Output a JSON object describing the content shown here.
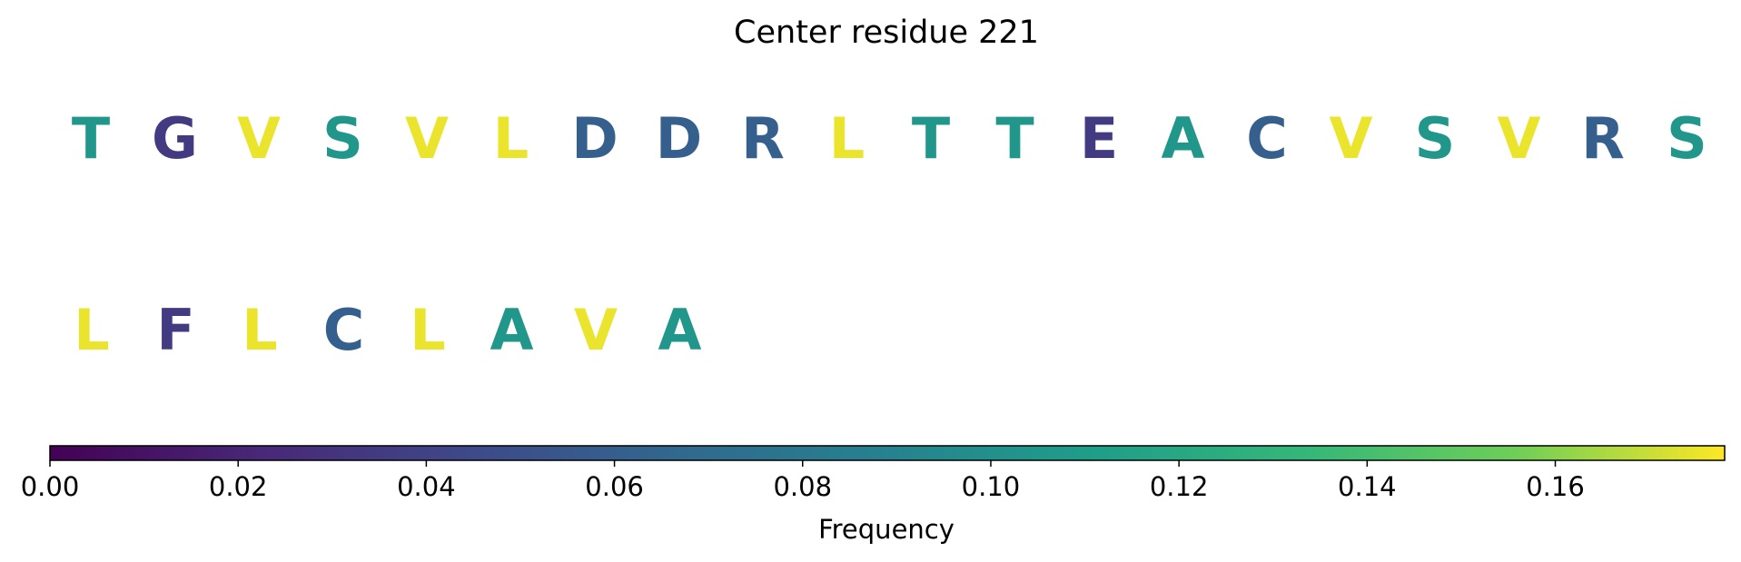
{
  "chart_data": {
    "type": "heatmap",
    "title": "Center residue 221",
    "rows": [
      {
        "residues": [
          "T",
          "G",
          "V",
          "S",
          "V",
          "L",
          "D",
          "D",
          "R",
          "L",
          "T",
          "T",
          "E",
          "A",
          "C",
          "V",
          "S",
          "V",
          "R",
          "S"
        ],
        "values": [
          0.105,
          0.035,
          0.175,
          0.105,
          0.175,
          0.175,
          0.06,
          0.06,
          0.06,
          0.175,
          0.105,
          0.105,
          0.035,
          0.105,
          0.06,
          0.175,
          0.105,
          0.175,
          0.06,
          0.105
        ]
      },
      {
        "residues": [
          "L",
          "F",
          "L",
          "C",
          "L",
          "A",
          "V",
          "A"
        ],
        "values": [
          0.175,
          0.035,
          0.175,
          0.06,
          0.175,
          0.105,
          0.175,
          0.105
        ]
      }
    ],
    "colorbar": {
      "label": "Frequency",
      "range": [
        0,
        0.178
      ],
      "ticks": [
        0,
        0.02,
        0.04,
        0.06,
        0.08,
        0.1,
        0.12,
        0.14,
        0.16
      ],
      "tick_labels": [
        "0.00",
        "0.02",
        "0.04",
        "0.06",
        "0.08",
        "0.10",
        "0.12",
        "0.14",
        "0.16"
      ],
      "colormap": "viridis",
      "orientation": "horizontal",
      "placement": "bottom"
    }
  }
}
